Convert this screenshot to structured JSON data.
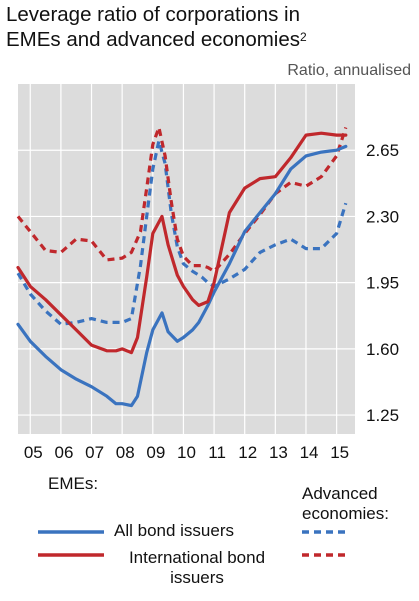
{
  "title": {
    "line1": "Leverage ratio of corporations in",
    "line2": "EMEs and advanced economies",
    "superscript": "2"
  },
  "unit_label": "Ratio, annualised",
  "colors": {
    "blue": "#3a73bf",
    "red": "#c0282c",
    "background": "#dcdcdc",
    "grid": "#ffffff"
  },
  "legend": {
    "emes_heading": "EMEs:",
    "advanced_heading": "Advanced economies:",
    "all_bond_issuers": "All bond issuers",
    "international_bond_issuers": "International bond issuers"
  },
  "chart_data": {
    "type": "line",
    "title": "Leverage ratio of corporations in EMEs and advanced economies",
    "ylabel": "Ratio, annualised",
    "xlabel": "",
    "x_ticks": [
      "05",
      "06",
      "07",
      "08",
      "09",
      "10",
      "11",
      "12",
      "13",
      "14",
      "15"
    ],
    "y_ticks": [
      1.25,
      1.6,
      1.95,
      2.3,
      2.65
    ],
    "y_tick_labels": [
      "1.25",
      "1.60",
      "1.95",
      "2.30",
      "2.65"
    ],
    "xlim": [
      2004.6,
      2015.6
    ],
    "ylim": [
      1.15,
      3.0
    ],
    "grid": true,
    "series": [
      {
        "name": "EMEs: All bond issuers",
        "color": "#3a73bf",
        "style": "solid",
        "x": [
          2004.6,
          2005.0,
          2005.5,
          2006.0,
          2006.5,
          2007.0,
          2007.5,
          2007.8,
          2008.0,
          2008.3,
          2008.5,
          2008.8,
          2009.0,
          2009.3,
          2009.5,
          2009.8,
          2010.0,
          2010.3,
          2010.5,
          2010.8,
          2011.0,
          2011.5,
          2012.0,
          2012.5,
          2013.0,
          2013.5,
          2014.0,
          2014.5,
          2015.0,
          2015.3
        ],
        "y": [
          1.73,
          1.64,
          1.56,
          1.49,
          1.44,
          1.4,
          1.35,
          1.31,
          1.31,
          1.3,
          1.35,
          1.58,
          1.7,
          1.79,
          1.69,
          1.64,
          1.66,
          1.7,
          1.74,
          1.83,
          1.9,
          2.05,
          2.22,
          2.32,
          2.42,
          2.55,
          2.62,
          2.64,
          2.65,
          2.67
        ]
      },
      {
        "name": "EMEs: International bond issuers",
        "color": "#c0282c",
        "style": "solid",
        "x": [
          2004.6,
          2005.0,
          2005.5,
          2006.0,
          2006.5,
          2007.0,
          2007.5,
          2007.8,
          2008.0,
          2008.3,
          2008.5,
          2008.8,
          2009.0,
          2009.3,
          2009.5,
          2009.8,
          2010.0,
          2010.3,
          2010.5,
          2010.8,
          2011.0,
          2011.5,
          2012.0,
          2012.5,
          2013.0,
          2013.5,
          2014.0,
          2014.5,
          2015.0,
          2015.3
        ],
        "y": [
          2.03,
          1.93,
          1.86,
          1.78,
          1.7,
          1.62,
          1.59,
          1.59,
          1.6,
          1.58,
          1.66,
          1.98,
          2.21,
          2.3,
          2.15,
          1.99,
          1.93,
          1.86,
          1.83,
          1.85,
          1.95,
          2.32,
          2.45,
          2.5,
          2.51,
          2.61,
          2.73,
          2.74,
          2.73,
          2.73
        ]
      },
      {
        "name": "Advanced economies: All bond issuers",
        "color": "#3a73bf",
        "style": "dashed",
        "x": [
          2004.6,
          2005.0,
          2005.5,
          2006.0,
          2006.5,
          2007.0,
          2007.5,
          2008.0,
          2008.3,
          2008.6,
          2008.8,
          2009.0,
          2009.2,
          2009.4,
          2009.6,
          2009.8,
          2010.0,
          2010.3,
          2010.6,
          2010.8,
          2011.0,
          2011.5,
          2012.0,
          2012.5,
          2013.0,
          2013.5,
          2014.0,
          2014.5,
          2015.0,
          2015.3
        ],
        "y": [
          2.0,
          1.89,
          1.8,
          1.73,
          1.74,
          1.76,
          1.74,
          1.74,
          1.76,
          2.04,
          2.3,
          2.55,
          2.7,
          2.58,
          2.32,
          2.14,
          2.05,
          2.01,
          1.98,
          1.95,
          1.93,
          1.97,
          2.02,
          2.11,
          2.15,
          2.18,
          2.13,
          2.13,
          2.21,
          2.37
        ]
      },
      {
        "name": "Advanced economies: International bond issuers",
        "color": "#c0282c",
        "style": "dashed",
        "x": [
          2004.6,
          2005.0,
          2005.5,
          2006.0,
          2006.5,
          2007.0,
          2007.5,
          2008.0,
          2008.3,
          2008.6,
          2008.8,
          2009.0,
          2009.2,
          2009.4,
          2009.6,
          2009.8,
          2010.0,
          2010.3,
          2010.6,
          2010.8,
          2011.0,
          2011.5,
          2012.0,
          2012.5,
          2013.0,
          2013.5,
          2014.0,
          2014.5,
          2015.0,
          2015.3
        ],
        "y": [
          2.3,
          2.22,
          2.12,
          2.11,
          2.18,
          2.17,
          2.07,
          2.08,
          2.11,
          2.22,
          2.45,
          2.68,
          2.77,
          2.62,
          2.38,
          2.18,
          2.09,
          2.04,
          2.04,
          2.03,
          2.01,
          2.1,
          2.21,
          2.31,
          2.42,
          2.48,
          2.46,
          2.51,
          2.62,
          2.77
        ]
      }
    ]
  }
}
